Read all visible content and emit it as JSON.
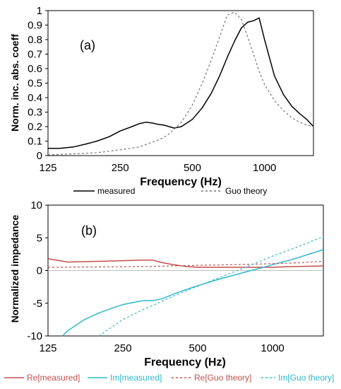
{
  "chart_data": [
    {
      "type": "line",
      "panel_label": "(a)",
      "xlabel": "Frequency (Hz)",
      "ylabel": "Norm. inc. abs. coeff",
      "x_scale": "log",
      "xlim": [
        125,
        1600
      ],
      "ylim": [
        0,
        1
      ],
      "x_ticks": [
        125,
        250,
        500,
        1000
      ],
      "x_tick_labels": [
        "125",
        "250",
        "500",
        "1000"
      ],
      "y_ticks": [
        0,
        0.1,
        0.2,
        0.3,
        0.4,
        0.5,
        0.6,
        0.7,
        0.8,
        0.9,
        1
      ],
      "y_tick_labels": [
        "0",
        "0.1",
        "0.2",
        "0.3",
        "0.4",
        "0.5",
        "0.6",
        "0.7",
        "0.8",
        "0.9",
        "1"
      ],
      "grid": false,
      "legend_position": "bottom",
      "series": [
        {
          "name": "measured",
          "color": "#000000",
          "dash": "solid",
          "x": [
            125,
            140,
            160,
            180,
            200,
            225,
            250,
            280,
            300,
            320,
            340,
            360,
            380,
            400,
            420,
            450,
            500,
            550,
            600,
            650,
            700,
            750,
            800,
            850,
            900,
            950,
            1000,
            1100,
            1200,
            1300,
            1400,
            1500,
            1600
          ],
          "y": [
            0.05,
            0.05,
            0.06,
            0.08,
            0.1,
            0.13,
            0.17,
            0.2,
            0.22,
            0.23,
            0.225,
            0.215,
            0.21,
            0.2,
            0.19,
            0.2,
            0.25,
            0.33,
            0.43,
            0.55,
            0.68,
            0.79,
            0.88,
            0.92,
            0.93,
            0.95,
            0.8,
            0.55,
            0.42,
            0.34,
            0.29,
            0.25,
            0.2
          ]
        },
        {
          "name": "Guo theory",
          "color": "#777777",
          "dash": "dashed",
          "x": [
            125,
            150,
            175,
            200,
            225,
            250,
            275,
            300,
            325,
            350,
            375,
            400,
            425,
            450,
            475,
            500,
            550,
            600,
            650,
            700,
            750,
            800,
            850,
            900,
            950,
            1000,
            1100,
            1200,
            1300,
            1400,
            1500,
            1600
          ],
          "y": [
            0.005,
            0.01,
            0.015,
            0.02,
            0.03,
            0.04,
            0.05,
            0.06,
            0.08,
            0.1,
            0.12,
            0.15,
            0.19,
            0.23,
            0.29,
            0.35,
            0.5,
            0.66,
            0.82,
            0.97,
            0.99,
            0.94,
            0.82,
            0.7,
            0.58,
            0.49,
            0.38,
            0.31,
            0.26,
            0.23,
            0.21,
            0.2
          ]
        }
      ]
    },
    {
      "type": "line",
      "panel_label": "(b)",
      "xlabel": "Frequency (Hz)",
      "ylabel": "Normalized impedance",
      "x_scale": "log",
      "xlim": [
        125,
        1600
      ],
      "ylim": [
        -10,
        10
      ],
      "x_ticks": [
        125,
        250,
        500,
        1000
      ],
      "x_tick_labels": [
        "125",
        "250",
        "500",
        "1000"
      ],
      "y_ticks": [
        -10,
        -5,
        0,
        5,
        10
      ],
      "y_tick_labels": [
        "-10",
        "-5",
        "0",
        "5",
        "10"
      ],
      "grid": false,
      "legend_position": "bottom",
      "series": [
        {
          "name": "Re[measured]",
          "color": "#c0504d",
          "dash": "solid",
          "x": [
            125,
            150,
            200,
            250,
            300,
            330,
            360,
            400,
            450,
            500,
            600,
            800,
            1000,
            1200,
            1600
          ],
          "y": [
            1.8,
            1.3,
            1.4,
            1.5,
            1.6,
            1.6,
            1.2,
            0.9,
            0.6,
            0.5,
            0.5,
            0.5,
            0.5,
            0.6,
            0.7
          ]
        },
        {
          "name": "Im[measured]",
          "color": "#2eb8cc",
          "dash": "solid",
          "x": [
            143,
            150,
            175,
            200,
            225,
            250,
            300,
            330,
            360,
            400,
            450,
            500,
            600,
            700,
            800,
            900,
            1000,
            1200,
            1400,
            1600
          ],
          "y": [
            -10,
            -9.2,
            -7.5,
            -6.5,
            -5.8,
            -5.2,
            -4.6,
            -4.6,
            -4.3,
            -3.6,
            -2.9,
            -2.3,
            -1.4,
            -0.7,
            -0.1,
            0.4,
            0.9,
            1.7,
            2.5,
            3.2
          ]
        },
        {
          "name": "Re[Guo theory]",
          "color": "#c0504d",
          "dash": "dashed",
          "x": [
            125,
            200,
            300,
            400,
            500,
            700,
            1000,
            1300,
            1600
          ],
          "y": [
            0.5,
            0.55,
            0.6,
            0.7,
            0.8,
            0.9,
            1.05,
            1.2,
            1.4
          ]
        },
        {
          "name": "Im[Guo theory]",
          "color": "#2eb8cc",
          "dash": "dashed",
          "x": [
            200,
            250,
            300,
            350,
            400,
            500,
            600,
            700,
            800,
            1000,
            1200,
            1400,
            1600
          ],
          "y": [
            -10,
            -7.5,
            -6,
            -4.9,
            -3.9,
            -2.4,
            -1.2,
            -0.2,
            0.7,
            2.2,
            3.3,
            4.3,
            5.2
          ]
        }
      ]
    }
  ]
}
